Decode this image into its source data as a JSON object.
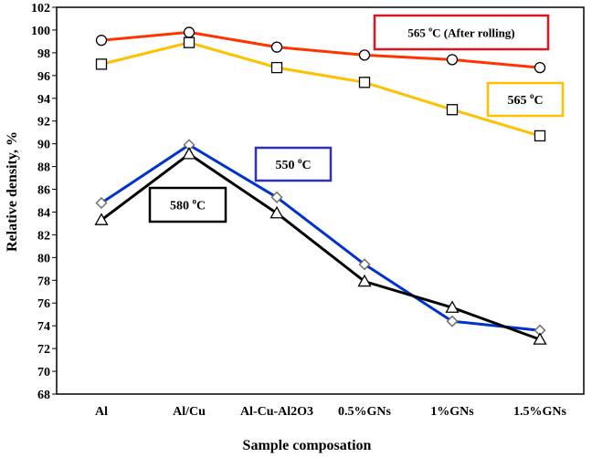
{
  "chart_data": {
    "type": "line",
    "title": "",
    "xlabel": "Sample composation",
    "ylabel": "Relative density, %",
    "ylim": [
      68,
      102
    ],
    "ytick_step": 2,
    "grid": false,
    "categories": [
      "Al",
      "Al/Cu",
      "Al-Cu-Al2O3",
      "0.5%GNs",
      "1%GNs",
      "1.5%GNs"
    ],
    "series": [
      {
        "name": "565 oC (After rolling)",
        "label_main": "565 ",
        "label_sup": "o",
        "label_rest": "C (After rolling)",
        "color": "#ff3300",
        "box_border": "#e0141e",
        "marker": "circle",
        "values": [
          99.1,
          99.8,
          98.5,
          97.8,
          97.4,
          96.7
        ]
      },
      {
        "name": "565 oC",
        "label_main": "565 ",
        "label_sup": "o",
        "label_rest": "C",
        "color": "#ffc000",
        "box_border": "#ffc000",
        "marker": "square",
        "values": [
          97.0,
          98.9,
          96.7,
          95.4,
          93.0,
          90.7
        ]
      },
      {
        "name": "550 oC",
        "label_main": "550 ",
        "label_sup": "o",
        "label_rest": "C",
        "color": "#0033cc",
        "box_border": "#2e2ebf",
        "marker": "diamond",
        "values": [
          84.8,
          89.9,
          85.3,
          79.4,
          74.4,
          73.6
        ]
      },
      {
        "name": "580 oC",
        "label_main": "580 ",
        "label_sup": "o",
        "label_rest": "C",
        "color": "#000000",
        "box_border": "#000000",
        "marker": "triangle",
        "values": [
          83.3,
          89.1,
          83.9,
          77.9,
          75.6,
          72.8
        ]
      }
    ]
  }
}
